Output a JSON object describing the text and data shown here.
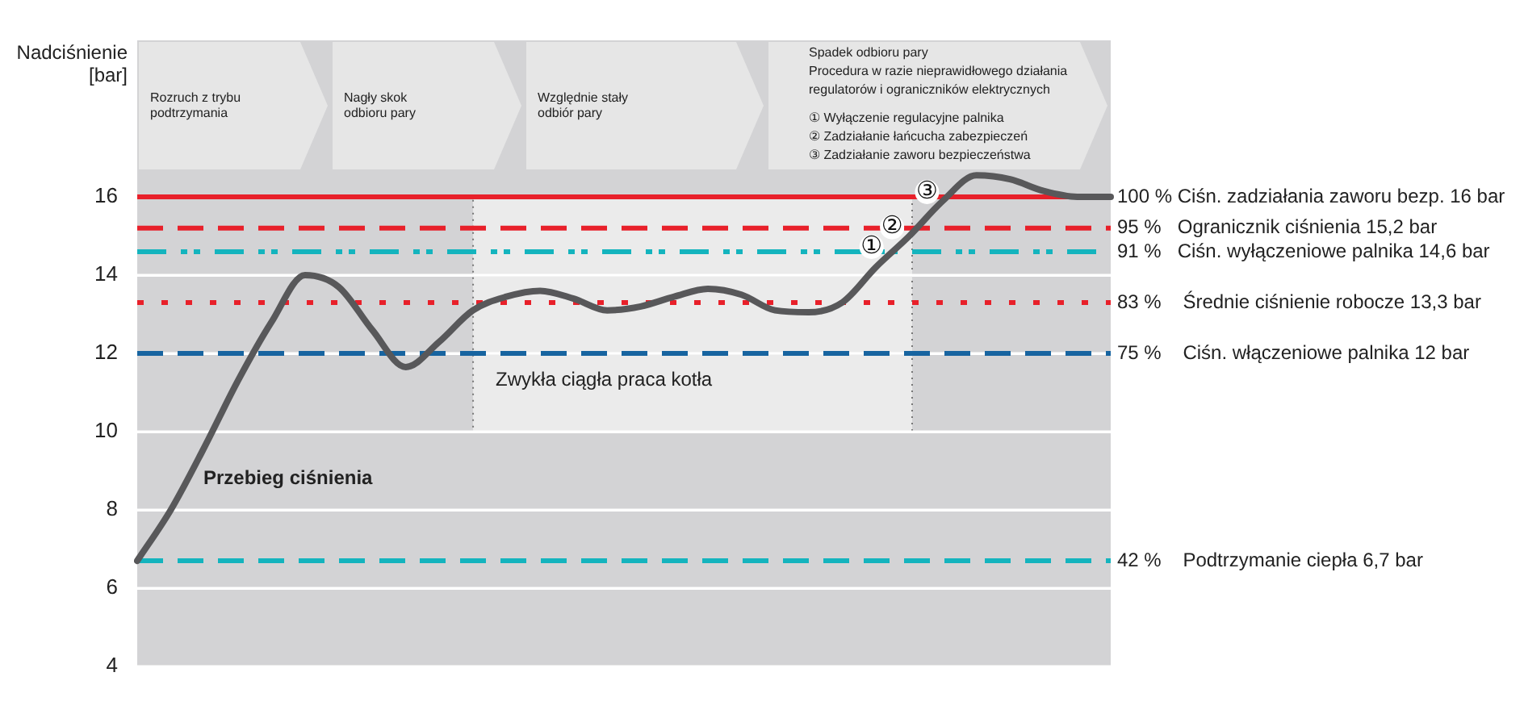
{
  "chart_data": {
    "type": "line",
    "ylabel": "Nadciśnienie\n[bar]",
    "categories": [
      null,
      null,
      null,
      null,
      null,
      null,
      null,
      null,
      null,
      null,
      null,
      null,
      null,
      null,
      null,
      null,
      null,
      null,
      null,
      null,
      null,
      null,
      null,
      null,
      null,
      null,
      null,
      null,
      null,
      null
    ],
    "series": [
      {
        "color": "#58585a",
        "values": [
          6.7,
          8,
          9.6,
          11.3,
          12.8,
          14,
          13.7,
          12.6,
          11.65,
          12.3,
          13.1,
          13.45,
          13.6,
          13.4,
          13.1,
          13.2,
          13.45,
          13.65,
          13.5,
          13.1,
          13.05,
          13.3,
          14.2,
          15,
          15.9,
          16.55,
          16.45,
          16.15,
          16,
          16
        ]
      }
    ],
    "ylim": [
      4,
      20
    ],
    "yticks": [
      4,
      6,
      8,
      10,
      12,
      14,
      16
    ],
    "grid": "y",
    "tick_labels": "y",
    "marker": "none",
    "line_style": "solid",
    "ref_lines": [
      {
        "axis": "y",
        "value": 16,
        "label": "100 % Ciśn. zadziałania zaworu bezp. 16 bar",
        "color": "#e8202a",
        "line_style": "solid"
      },
      {
        "axis": "y",
        "value": 15.2,
        "label": "95 %   Ogranicznik ciśnienia 15,2 bar",
        "color": "#e8202a",
        "line_style": "dashed"
      },
      {
        "axis": "y",
        "value": 14.6,
        "label": "91 %   Ciśn. wyłączeniowe palnika 14,6 bar",
        "color": "#14b4be",
        "line_style": "dashdot"
      },
      {
        "axis": "y",
        "value": 13.3,
        "label": "83 %    Średnie ciśnienie robocze 13,3 bar",
        "color": "#e8202a",
        "line_style": "dotted"
      },
      {
        "axis": "y",
        "value": 12,
        "label": "75 %    Ciśn. włączeniowe palnika 12 bar",
        "color": "#1764a0",
        "line_style": "dashed"
      },
      {
        "axis": "y",
        "value": 6.7,
        "label": "42 %    Podtrzymanie ciepła 6,7 bar",
        "color": "#14b4be",
        "line_style": "dashed"
      }
    ],
    "bands": [
      {
        "axis": "y",
        "from": 10,
        "to": 16,
        "label": "Zwykła ciągła praca kotła",
        "color": "#ebebeb"
      }
    ],
    "annotations": [
      "Rozruch z trybu\npodtrzymania",
      "Nagły skok\nodbioru pary",
      "Względnie stały\nodbiór pary",
      "Spadek odbioru pary\nProcedura w razie nieprawidłowego działania\nregulatorów i ograniczników elektrycznych\n① Wyłączenie regulacyjne palnika\n② Zadziałanie łańcucha zabezpieczeń\n③ Zadziałanie zaworu bezpieczeństwa",
      "Przebieg ciśnienia",
      {
        "text": "①",
        "y": 14.6
      },
      {
        "text": "②",
        "y": 15.1
      },
      {
        "text": "③",
        "y": 16
      }
    ]
  }
}
